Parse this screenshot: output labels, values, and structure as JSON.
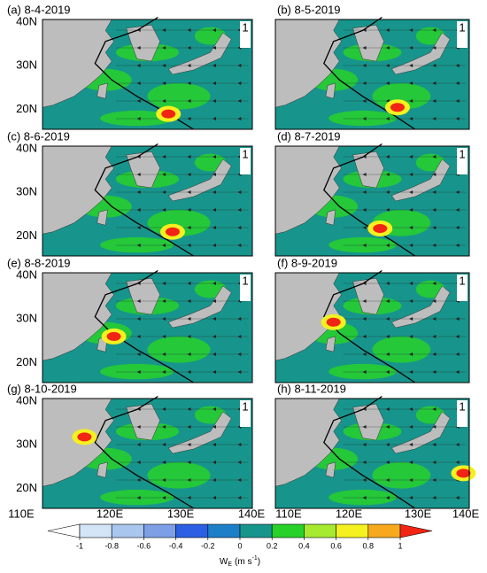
{
  "panels": [
    {
      "label": "(a) 8-4-2019"
    },
    {
      "label": "(b) 8-5-2019"
    },
    {
      "label": "(c) 8-6-2019"
    },
    {
      "label": "(d) 8-7-2019"
    },
    {
      "label": "(e) 8-8-2019"
    },
    {
      "label": "(f) 8-9-2019"
    },
    {
      "label": "(g) 8-10-2019"
    },
    {
      "label": "(h) 8-11-2019"
    }
  ],
  "lat_labels": [
    "40N",
    "30N",
    "20N"
  ],
  "lon_labels": [
    "110E",
    "120E",
    "130E",
    "140E"
  ],
  "reference_vector_label": "1",
  "colorbar": {
    "ticks": [
      -1,
      -0.8,
      -0.6,
      -0.4,
      -0.2,
      0,
      0.2,
      0.4,
      0.6,
      0.8,
      1
    ],
    "colors": [
      "#ffffff",
      "#d4e4f7",
      "#a9c6ef",
      "#7d9fe6",
      "#2c5fe3",
      "#1e7fc9",
      "#17958c",
      "#27d12a",
      "#a6ea2f",
      "#f5f01f",
      "#f6a91c",
      "#f22414"
    ],
    "title": "W",
    "title_subscript": "E",
    "units": "(m s",
    "units_superscript": "-1",
    "units_end": ")"
  }
}
